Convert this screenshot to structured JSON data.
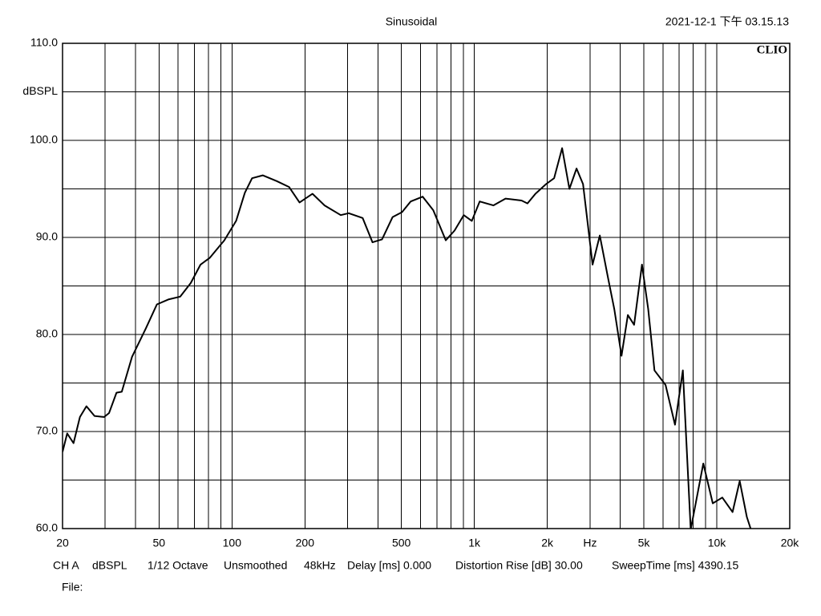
{
  "chart_data": {
    "type": "line",
    "title": "Sinusoidal",
    "timestamp": "2021-12-1 下午 03.15.13",
    "brand": "CLIO",
    "xscale": "log",
    "xlim": [
      20,
      20000
    ],
    "ylim": [
      60,
      110
    ],
    "xticks": [
      20,
      50,
      100,
      200,
      500,
      {
        "value": 1000,
        "label": "1k"
      },
      {
        "value": 2000,
        "label": "2k"
      },
      {
        "value": 3000,
        "label": "Hz"
      },
      {
        "value": 5000,
        "label": "5k"
      },
      {
        "value": 10000,
        "label": "10k"
      },
      {
        "value": 20000,
        "label": "20k"
      }
    ],
    "xgrid": [
      20,
      30,
      40,
      50,
      60,
      70,
      80,
      90,
      100,
      200,
      300,
      400,
      500,
      600,
      700,
      800,
      900,
      1000,
      2000,
      3000,
      4000,
      5000,
      6000,
      7000,
      8000,
      9000,
      10000,
      20000
    ],
    "yticks": [
      {
        "value": 110,
        "label": "110.0"
      },
      {
        "value": 105,
        "label": "dBSPL"
      },
      {
        "value": 100,
        "label": "100.0"
      },
      {
        "value": 90,
        "label": "90.0"
      },
      {
        "value": 80,
        "label": "80.0"
      },
      {
        "value": 70,
        "label": "70.0"
      },
      {
        "value": 60,
        "label": "60.0"
      }
    ],
    "ygrid": [
      60,
      65,
      70,
      75,
      80,
      85,
      90,
      95,
      100,
      105,
      110
    ],
    "grid": true,
    "series": [
      {
        "color": "#000000",
        "x": [
          20,
          20.9,
          22.2,
          23.6,
          25.1,
          27.1,
          29.7,
          31.1,
          33.4,
          35.1,
          38.7,
          44.1,
          49,
          54.6,
          61.2,
          67.6,
          74.2,
          81,
          93,
          104,
          113,
          121,
          134,
          153,
          172,
          190,
          215,
          241,
          281,
          303,
          346,
          380,
          416,
          460,
          503,
          546,
          612,
          677,
          762,
          828,
          904,
          976,
          1052,
          1198,
          1344,
          1566,
          1656,
          1786,
          1976,
          2132,
          2302,
          2466,
          2640,
          2808,
          3075,
          3292,
          3554,
          3779,
          4046,
          4296,
          4560,
          4913,
          5216,
          5536,
          6149,
          6725,
          7248,
          7809,
          8801,
          9630,
          10540,
          11620,
          12430,
          13310,
          13830
        ],
        "values": [
          67.9,
          69.8,
          68.8,
          71.5,
          72.6,
          71.6,
          71.5,
          71.9,
          74.0,
          74.1,
          77.7,
          80.6,
          83.1,
          83.6,
          83.9,
          85.3,
          87.2,
          87.9,
          89.7,
          91.7,
          94.6,
          96.1,
          96.4,
          95.8,
          95.2,
          93.6,
          94.5,
          93.3,
          92.3,
          92.5,
          92.0,
          89.5,
          89.8,
          92.1,
          92.6,
          93.7,
          94.2,
          92.8,
          89.7,
          90.7,
          92.3,
          91.7,
          93.7,
          93.3,
          94.0,
          93.8,
          93.5,
          94.5,
          95.5,
          96.1,
          99.2,
          95.0,
          97.1,
          95.5,
          87.2,
          90.2,
          85.9,
          82.6,
          77.8,
          82.0,
          81.0,
          87.2,
          82.6,
          76.3,
          74.8,
          70.7,
          76.3,
          59.9,
          66.7,
          62.6,
          63.2,
          61.7,
          64.9,
          61.2,
          59.9
        ]
      }
    ]
  },
  "info": [
    "CH A",
    "dBSPL",
    "1/12 Octave",
    "Unsmoothed",
    "48kHz",
    "Delay [ms] 0.000",
    "Distortion Rise [dB] 30.00",
    "SweepTime [ms] 4390.15"
  ],
  "file_label": "File:"
}
